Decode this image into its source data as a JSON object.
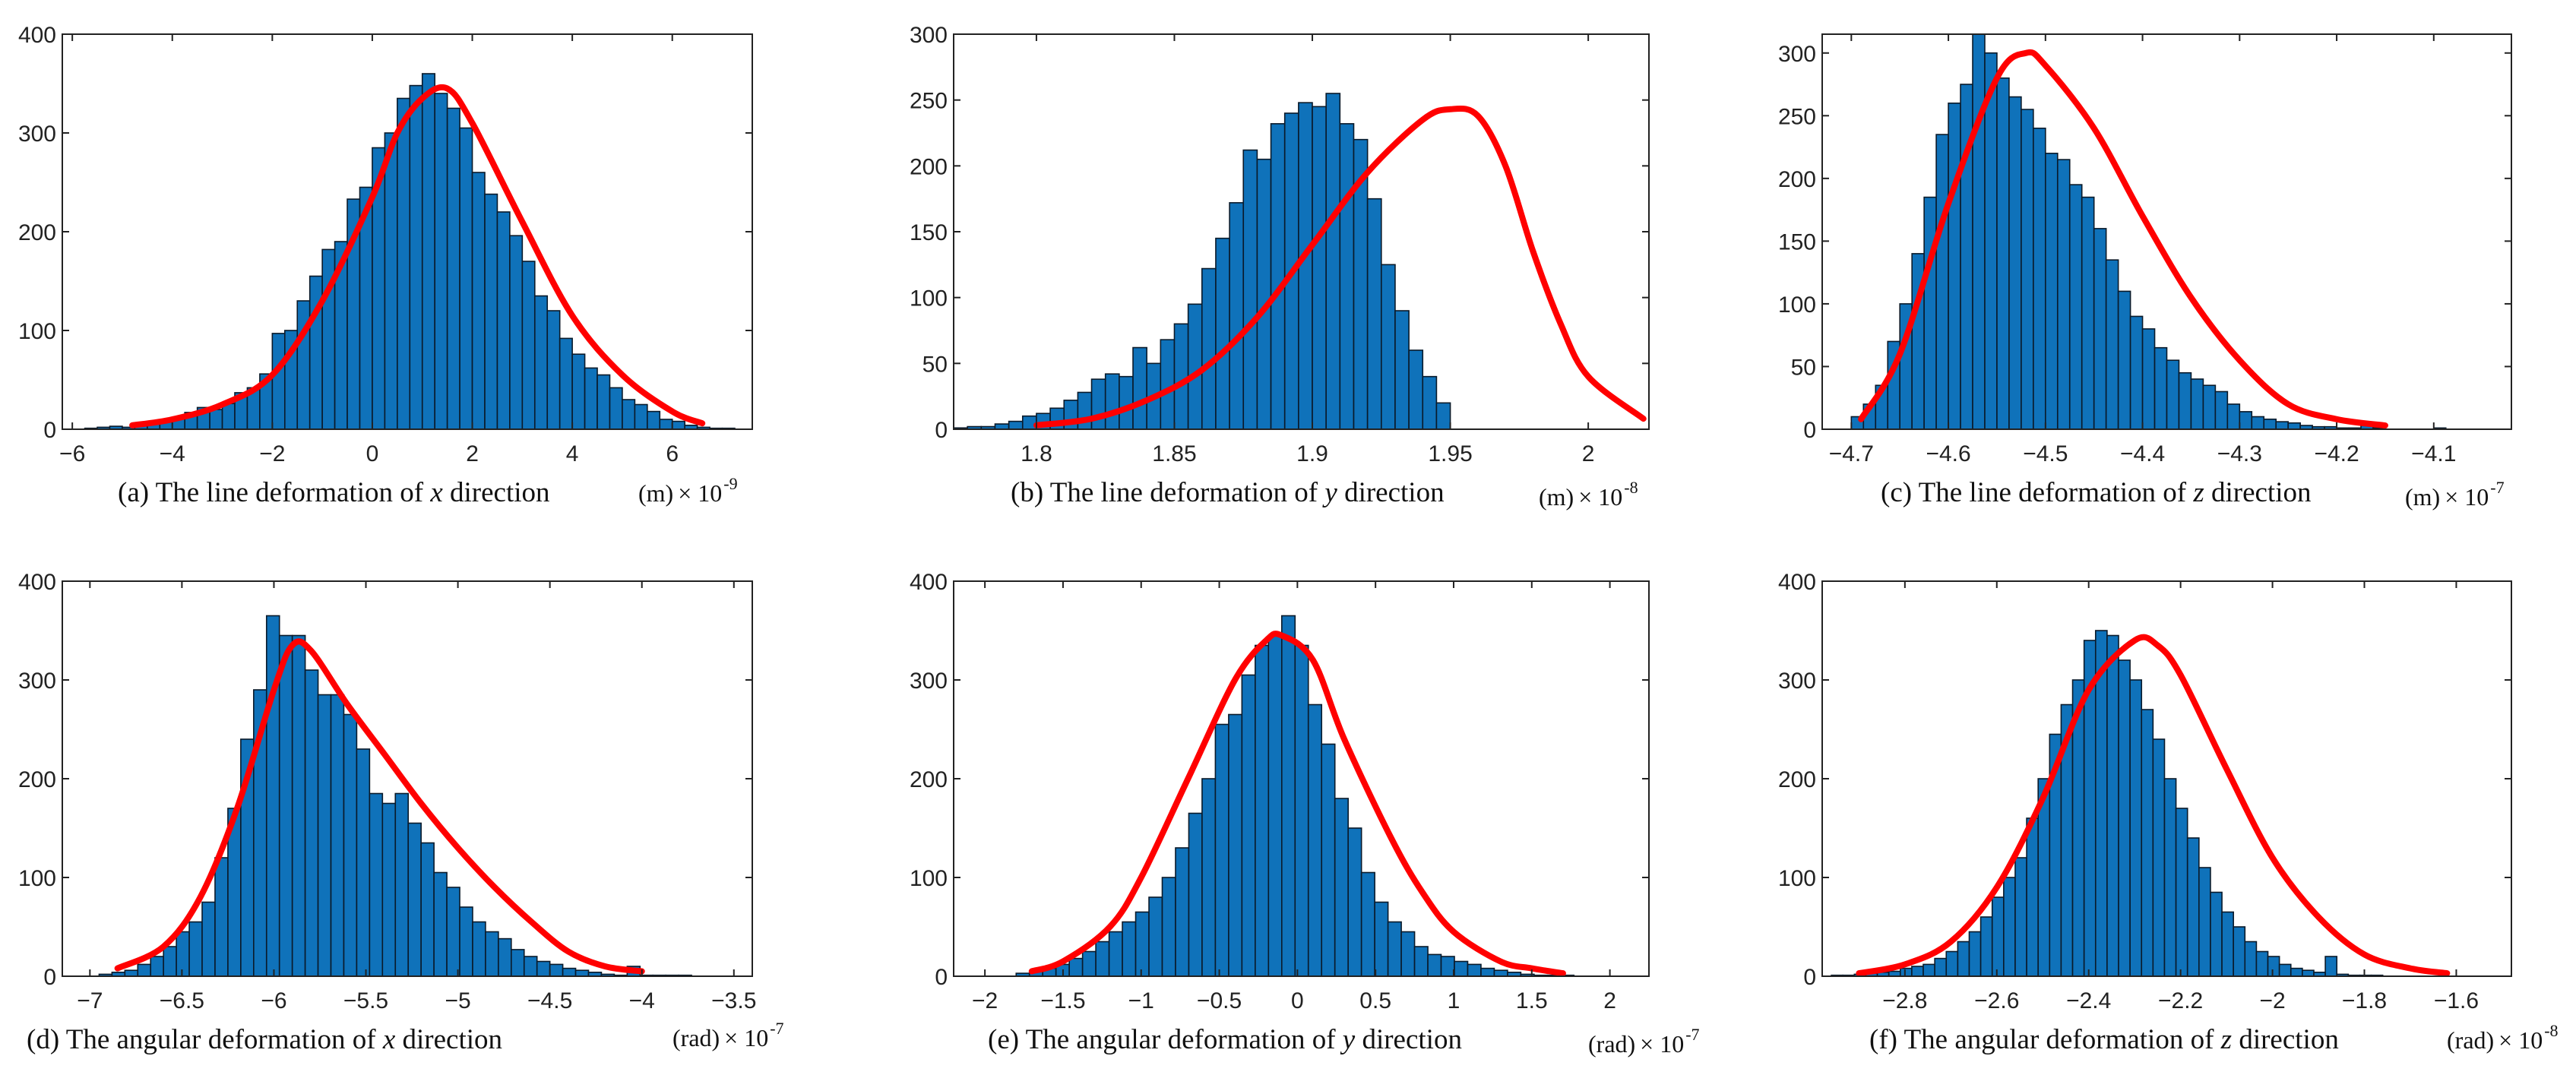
{
  "chart_data": [
    {
      "type": "bar",
      "panel": "a",
      "caption": {
        "prefix": "(a)  The line deformation of ",
        "var": "x",
        "suffix": " direction"
      },
      "unit": "(m)",
      "multiplier": "× 10",
      "exponent": "-9",
      "xlim": [
        -6.2,
        7.6
      ],
      "ylim": [
        0,
        400
      ],
      "xticks": [
        -6,
        -4,
        -2,
        0,
        2,
        4,
        6
      ],
      "xtick_labels": [
        "−6",
        "−4",
        "−2",
        "0",
        "2",
        "4",
        "6"
      ],
      "yticks": [
        0,
        100,
        200,
        300,
        400
      ],
      "ytick_labels": [
        "0",
        "100",
        "200",
        "300",
        "400"
      ],
      "bin_start": -6.0,
      "bin_width": 0.25,
      "values": [
        0,
        1,
        2,
        3,
        2,
        4,
        6,
        9,
        12,
        17,
        22,
        20,
        26,
        37,
        42,
        56,
        97,
        100,
        130,
        155,
        182,
        190,
        233,
        245,
        285,
        300,
        335,
        348,
        360,
        340,
        325,
        305,
        260,
        238,
        220,
        196,
        170,
        135,
        120,
        92,
        76,
        62,
        55,
        42,
        30,
        25,
        18,
        10,
        8,
        4,
        2,
        1,
        1
      ],
      "curve": {
        "x": [
          -4.8,
          -4,
          -3,
          -2,
          -1,
          0,
          0.5,
          1,
          1.5,
          2,
          3,
          4,
          5,
          6,
          6.6
        ],
        "y": [
          4,
          10,
          25,
          55,
          130,
          235,
          300,
          335,
          345,
          310,
          210,
          115,
          55,
          18,
          6
        ]
      }
    },
    {
      "type": "bar",
      "panel": "b",
      "caption": {
        "prefix": "(b)  The line deformation of ",
        "var": "y",
        "suffix": " direction"
      },
      "unit": "(m)",
      "multiplier": "× 10",
      "exponent": "-8",
      "xlim": [
        1.77,
        2.022
      ],
      "ylim": [
        0,
        300
      ],
      "xticks": [
        1.8,
        1.85,
        1.9,
        1.95,
        2.0
      ],
      "xtick_labels": [
        "1.8",
        "1.85",
        "1.9",
        "1.95",
        "2"
      ],
      "yticks": [
        0,
        50,
        100,
        150,
        200,
        250,
        300
      ],
      "ytick_labels": [
        "0",
        "50",
        "100",
        "150",
        "200",
        "250",
        "300"
      ],
      "bin_start": 1.77,
      "bin_width": 0.005,
      "values": [
        1,
        2,
        2,
        4,
        6,
        10,
        12,
        16,
        22,
        28,
        38,
        42,
        40,
        62,
        50,
        68,
        80,
        95,
        122,
        145,
        172,
        212,
        205,
        232,
        240,
        248,
        245,
        255,
        232,
        220,
        175,
        125,
        90,
        60,
        40,
        20
      ],
      "curve": {
        "x": [
          1.8,
          1.82,
          1.84,
          1.86,
          1.88,
          1.9,
          1.92,
          1.94,
          1.95,
          1.96,
          1.97,
          1.98,
          1.99,
          2.0,
          2.02
        ],
        "y": [
          3,
          8,
          22,
          45,
          85,
          140,
          195,
          235,
          243,
          238,
          200,
          135,
          80,
          40,
          8
        ]
      }
    },
    {
      "type": "bar",
      "panel": "c",
      "caption": {
        "prefix": "(c)  The line deformation of ",
        "var": "z",
        "suffix": " direction"
      },
      "unit": "(m)",
      "multiplier": "× 10",
      "exponent": "-7",
      "xlim": [
        -4.73,
        -4.02
      ],
      "ylim": [
        0,
        315
      ],
      "xticks": [
        -4.7,
        -4.6,
        -4.5,
        -4.4,
        -4.3,
        -4.2,
        -4.1
      ],
      "xtick_labels": [
        "−4.7",
        "−4.6",
        "−4.5",
        "−4.4",
        "−4.3",
        "−4.2",
        "−4.1"
      ],
      "yticks": [
        0,
        50,
        100,
        150,
        200,
        250,
        300
      ],
      "ytick_labels": [
        "0",
        "50",
        "100",
        "150",
        "200",
        "250",
        "300"
      ],
      "bin_start": -4.7,
      "bin_width": 0.0125,
      "values": [
        10,
        20,
        35,
        70,
        100,
        140,
        185,
        235,
        260,
        275,
        315,
        300,
        280,
        265,
        255,
        240,
        220,
        215,
        195,
        185,
        160,
        135,
        110,
        90,
        80,
        65,
        55,
        45,
        40,
        35,
        30,
        20,
        14,
        10,
        8,
        6,
        5,
        3,
        2,
        2,
        1,
        1,
        3,
        1,
        0,
        0,
        0,
        0,
        1
      ],
      "curve": {
        "x": [
          -4.69,
          -4.65,
          -4.6,
          -4.55,
          -4.52,
          -4.5,
          -4.45,
          -4.4,
          -4.35,
          -4.3,
          -4.25,
          -4.2,
          -4.15
        ],
        "y": [
          8,
          60,
          180,
          280,
          300,
          290,
          240,
          170,
          105,
          55,
          20,
          8,
          3
        ]
      }
    },
    {
      "type": "bar",
      "panel": "d",
      "caption": {
        "prefix": "(d) The angular deformation of ",
        "var": "x",
        "suffix": " direction"
      },
      "unit": "(rad)",
      "multiplier": "× 10",
      "exponent": "-7",
      "xlim": [
        -7.15,
        -3.4
      ],
      "ylim": [
        0,
        400
      ],
      "xticks": [
        -7,
        -6.5,
        -6,
        -5.5,
        -5,
        -4.5,
        -4,
        -3.5
      ],
      "xtick_labels": [
        "−7",
        "−6.5",
        "−6",
        "−5.5",
        "−5",
        "−4.5",
        "−4",
        "−3.5"
      ],
      "yticks": [
        0,
        100,
        200,
        300,
        400
      ],
      "ytick_labels": [
        "0",
        "100",
        "200",
        "300",
        "400"
      ],
      "bin_start": -6.95,
      "bin_width": 0.07,
      "values": [
        2,
        4,
        6,
        12,
        20,
        30,
        45,
        55,
        75,
        120,
        170,
        240,
        290,
        365,
        345,
        345,
        310,
        285,
        285,
        265,
        230,
        185,
        175,
        185,
        155,
        135,
        105,
        90,
        70,
        55,
        45,
        38,
        27,
        20,
        15,
        12,
        8,
        6,
        4,
        2,
        1,
        10,
        1,
        1,
        1,
        1
      ],
      "curve": {
        "x": [
          -6.85,
          -6.6,
          -6.4,
          -6.2,
          -6.0,
          -5.9,
          -5.8,
          -5.6,
          -5.4,
          -5.2,
          -5.0,
          -4.8,
          -4.6,
          -4.4,
          -4.2,
          -4.0
        ],
        "y": [
          8,
          30,
          80,
          170,
          290,
          335,
          330,
          275,
          225,
          175,
          130,
          90,
          55,
          25,
          10,
          5
        ]
      }
    },
    {
      "type": "bar",
      "panel": "e",
      "caption": {
        "prefix": "(e) The angular deformation of ",
        "var": "y",
        "suffix": " direction"
      },
      "unit": "(rad)",
      "multiplier": "× 10",
      "exponent": "-7",
      "xlim": [
        -2.2,
        2.25
      ],
      "ylim": [
        0,
        400
      ],
      "xticks": [
        -2,
        -1.5,
        -1,
        -0.5,
        0,
        0.5,
        1,
        1.5,
        2
      ],
      "xtick_labels": [
        "−2",
        "−1.5",
        "−1",
        "−0.5",
        "0",
        "0.5",
        "1",
        "1.5",
        "2"
      ],
      "yticks": [
        0,
        100,
        200,
        300,
        400
      ],
      "ytick_labels": [
        "0",
        "100",
        "200",
        "300",
        "400"
      ],
      "bin_start": -1.8,
      "bin_width": 0.085,
      "values": [
        3,
        5,
        8,
        12,
        18,
        25,
        35,
        45,
        55,
        65,
        80,
        100,
        130,
        165,
        200,
        255,
        265,
        305,
        335,
        345,
        365,
        335,
        275,
        235,
        180,
        150,
        105,
        75,
        55,
        45,
        30,
        22,
        20,
        15,
        12,
        8,
        6,
        4,
        2,
        1,
        1,
        1
      ],
      "curve": {
        "x": [
          -1.7,
          -1.5,
          -1.2,
          -1.0,
          -0.7,
          -0.4,
          -0.2,
          -0.1,
          0.1,
          0.3,
          0.6,
          0.8,
          1.0,
          1.3,
          1.5,
          1.7
        ],
        "y": [
          5,
          15,
          50,
          100,
          200,
          300,
          340,
          345,
          320,
          240,
          140,
          85,
          45,
          15,
          8,
          3
        ]
      }
    },
    {
      "type": "bar",
      "panel": "f",
      "caption": {
        "prefix": "(f) The angular deformation of ",
        "var": "z",
        "suffix": " direction"
      },
      "unit": "(rad)",
      "multiplier": "× 10",
      "exponent": "-8",
      "xlim": [
        -2.98,
        -1.48
      ],
      "ylim": [
        0,
        400
      ],
      "xticks": [
        -2.8,
        -2.6,
        -2.4,
        -2.2,
        -2.0,
        -1.8,
        -1.6
      ],
      "xtick_labels": [
        "−2.8",
        "−2.6",
        "−2.4",
        "−2.2",
        "−2",
        "−1.8",
        "−1.6"
      ],
      "yticks": [
        0,
        100,
        200,
        300,
        400
      ],
      "ytick_labels": [
        "0",
        "100",
        "200",
        "300",
        "400"
      ],
      "bin_start": -2.96,
      "bin_width": 0.025,
      "values": [
        1,
        1,
        2,
        3,
        4,
        5,
        8,
        10,
        12,
        18,
        25,
        35,
        45,
        60,
        80,
        100,
        120,
        160,
        200,
        245,
        275,
        300,
        340,
        350,
        345,
        320,
        300,
        270,
        240,
        200,
        170,
        140,
        110,
        85,
        65,
        50,
        35,
        25,
        20,
        12,
        8,
        6,
        4,
        20,
        2,
        1,
        1,
        1
      ],
      "curve": {
        "x": [
          -2.9,
          -2.8,
          -2.7,
          -2.6,
          -2.5,
          -2.4,
          -2.3,
          -2.25,
          -2.2,
          -2.1,
          -2.0,
          -1.9,
          -1.8,
          -1.7,
          -1.62
        ],
        "y": [
          3,
          12,
          35,
          90,
          180,
          290,
          340,
          335,
          305,
          210,
          120,
          60,
          22,
          8,
          3
        ]
      }
    }
  ]
}
